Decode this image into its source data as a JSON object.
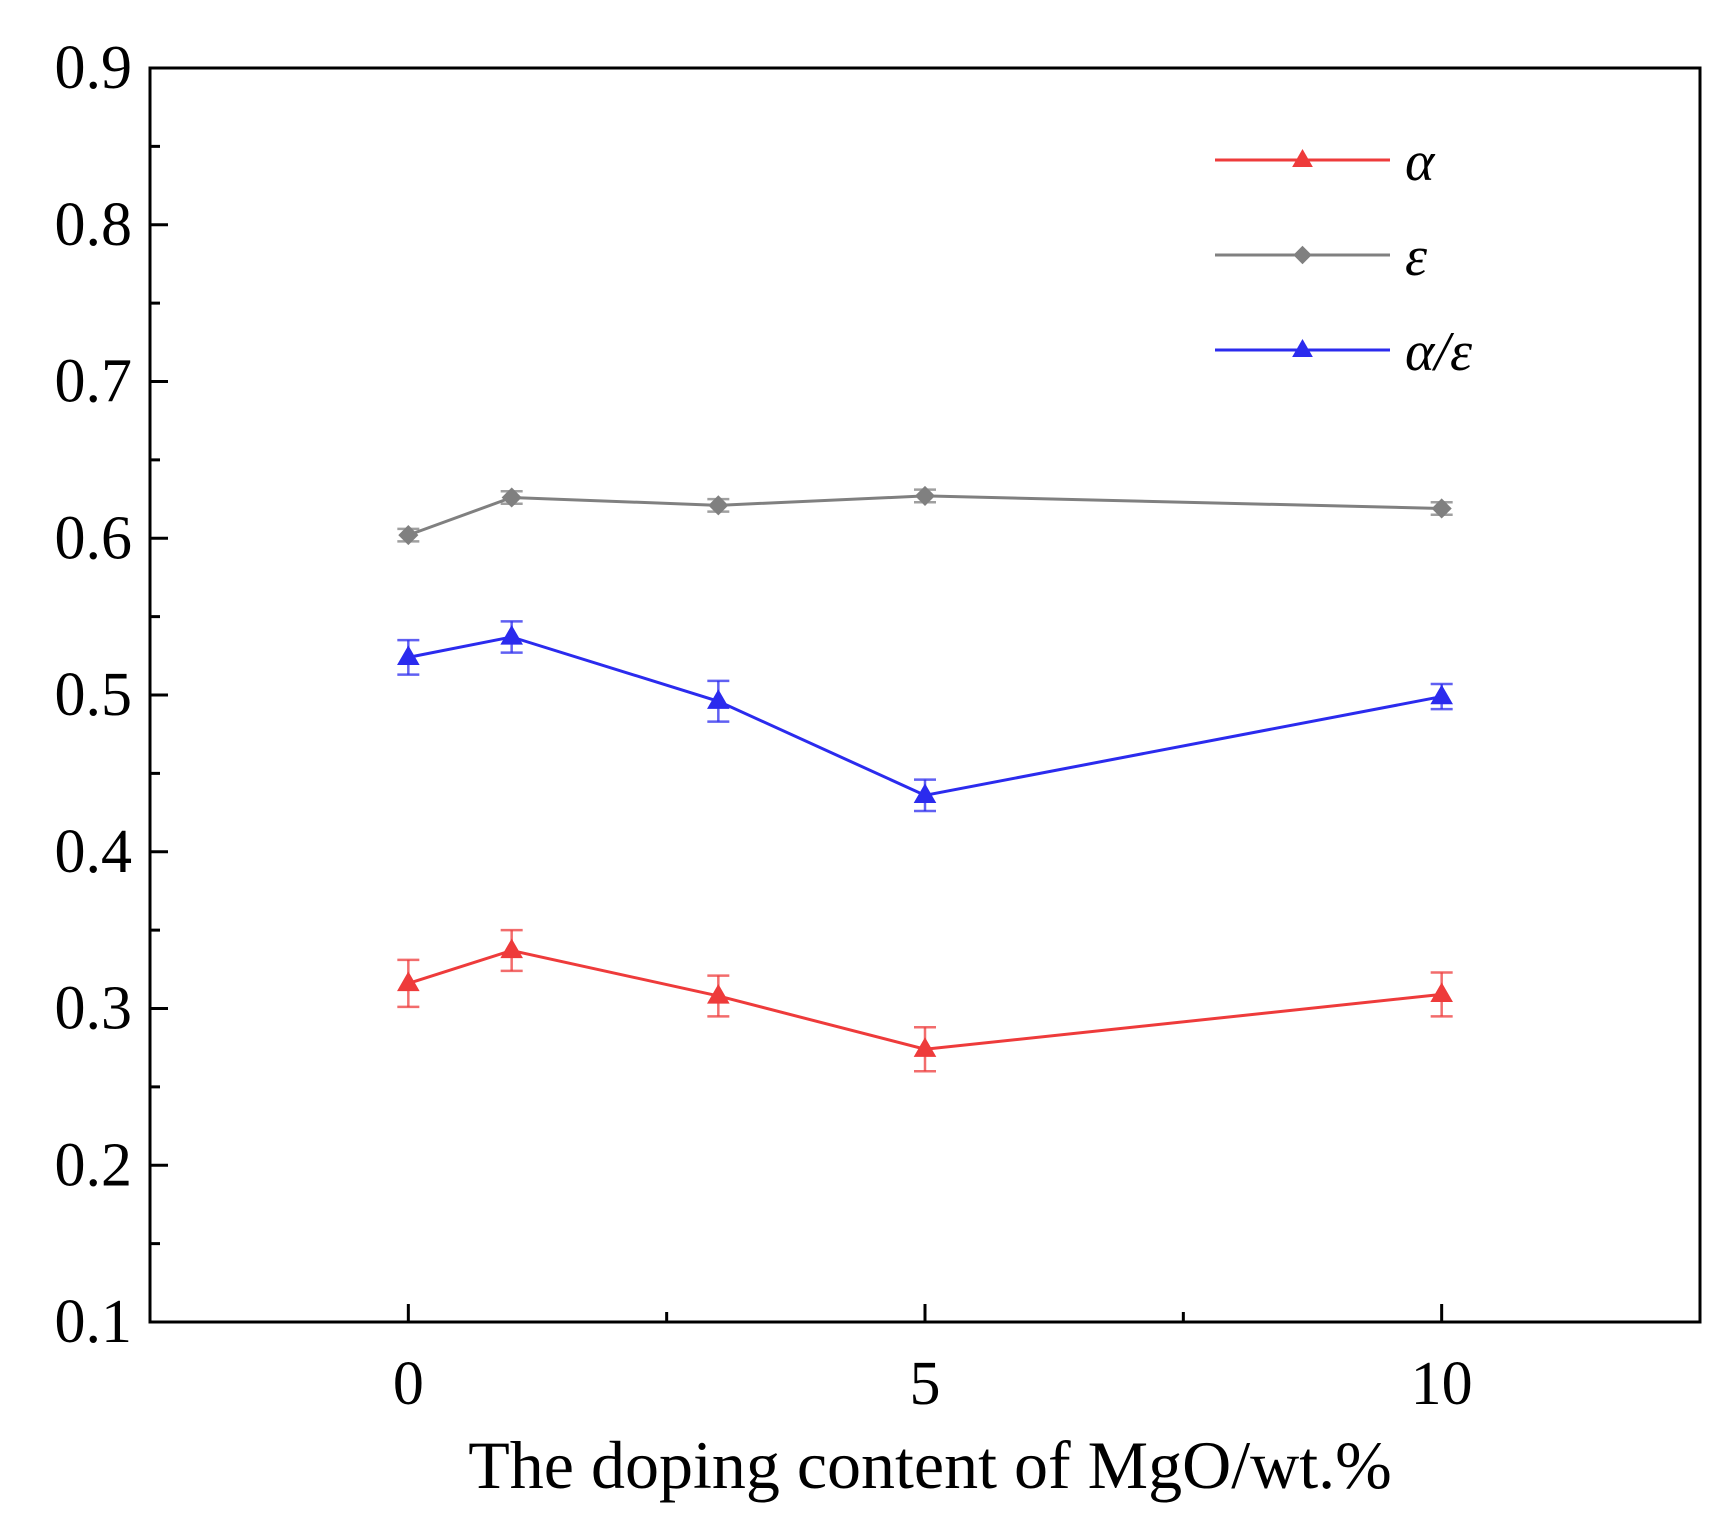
{
  "chart_data": {
    "type": "line",
    "title": "",
    "xlabel": "The doping content of MgO/wt.%",
    "ylabel": "",
    "xlim": [
      -2.5,
      12.5
    ],
    "ylim": [
      0.1,
      0.9
    ],
    "x_ticks": [
      0,
      5,
      10
    ],
    "x_minor_ticks": [
      2.5,
      7.5
    ],
    "y_ticks": [
      0.1,
      0.2,
      0.3,
      0.4,
      0.5,
      0.6,
      0.7,
      0.8,
      0.9
    ],
    "x_tick_labels": [
      "0",
      "5",
      "10"
    ],
    "y_tick_labels": [
      "0.1",
      "0.2",
      "0.3",
      "0.4",
      "0.5",
      "0.6",
      "0.7",
      "0.8",
      "0.9"
    ],
    "grid": false,
    "legend": "top-right",
    "series": [
      {
        "name": "α",
        "color": "#ee3b3b",
        "marker": "triangle",
        "x": [
          0,
          1,
          3,
          5,
          10
        ],
        "y": [
          0.316,
          0.337,
          0.308,
          0.274,
          0.309
        ],
        "error": [
          0.015,
          0.013,
          0.013,
          0.014,
          0.014
        ]
      },
      {
        "name": "ε",
        "color": "#808080",
        "marker": "diamond",
        "x": [
          0,
          1,
          3,
          5,
          10
        ],
        "y": [
          0.602,
          0.626,
          0.621,
          0.627,
          0.619
        ],
        "error": [
          0.004,
          0.004,
          0.004,
          0.004,
          0.004
        ]
      },
      {
        "name": "α/ε",
        "color": "#2b2bee",
        "marker": "triangle",
        "x": [
          0,
          1,
          3,
          5,
          10
        ],
        "y": [
          0.524,
          0.537,
          0.496,
          0.436,
          0.499
        ],
        "error": [
          0.011,
          0.01,
          0.013,
          0.01,
          0.008
        ]
      }
    ]
  }
}
